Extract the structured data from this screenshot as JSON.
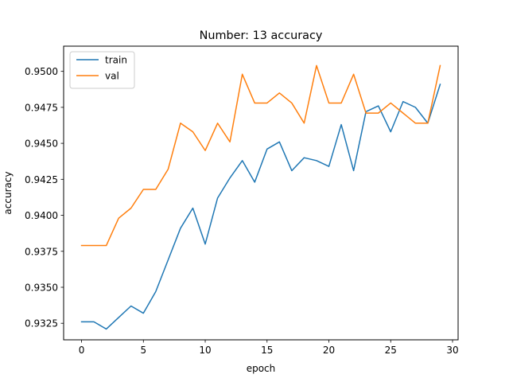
{
  "chart_data": {
    "type": "line",
    "title": "Number: 13 accuracy",
    "xlabel": "epoch",
    "ylabel": "accuracy",
    "xlim": [
      -1.45,
      30.45
    ],
    "ylim": [
      0.93135,
      0.95175
    ],
    "xticks": [
      0,
      5,
      10,
      15,
      20,
      25,
      30
    ],
    "yticks": [
      0.9325,
      0.935,
      0.9375,
      0.94,
      0.9425,
      0.945,
      0.9475,
      0.95
    ],
    "ytick_labels": [
      "0.9325",
      "0.9350",
      "0.9375",
      "0.9400",
      "0.9425",
      "0.9450",
      "0.9475",
      "0.9500"
    ],
    "grid": false,
    "legend_position": "top-left",
    "x": [
      0,
      1,
      2,
      3,
      4,
      5,
      6,
      7,
      8,
      9,
      10,
      11,
      12,
      13,
      14,
      15,
      16,
      17,
      18,
      19,
      20,
      21,
      22,
      23,
      24,
      25,
      26,
      27,
      28,
      29
    ],
    "series": [
      {
        "name": "train",
        "color": "#1f77b4",
        "values": [
          0.9326,
          0.9326,
          0.9321,
          0.9329,
          0.9337,
          0.9332,
          0.9347,
          0.9369,
          0.9391,
          0.9405,
          0.938,
          0.9412,
          0.9426,
          0.9438,
          0.9423,
          0.9446,
          0.9451,
          0.9431,
          0.944,
          0.9438,
          0.9434,
          0.9463,
          0.9431,
          0.9472,
          0.9476,
          0.9458,
          0.9479,
          0.9475,
          0.9464,
          0.9491
        ]
      },
      {
        "name": "val",
        "color": "#ff7f0e",
        "values": [
          0.9379,
          0.9379,
          0.9379,
          0.9398,
          0.9405,
          0.9418,
          0.9418,
          0.9432,
          0.9464,
          0.9458,
          0.9445,
          0.9464,
          0.9451,
          0.9498,
          0.9478,
          0.9478,
          0.9485,
          0.9478,
          0.9464,
          0.9504,
          0.9478,
          0.9478,
          0.9498,
          0.9471,
          0.9471,
          0.9478,
          0.9471,
          0.9464,
          0.9464,
          0.9504
        ]
      }
    ]
  }
}
